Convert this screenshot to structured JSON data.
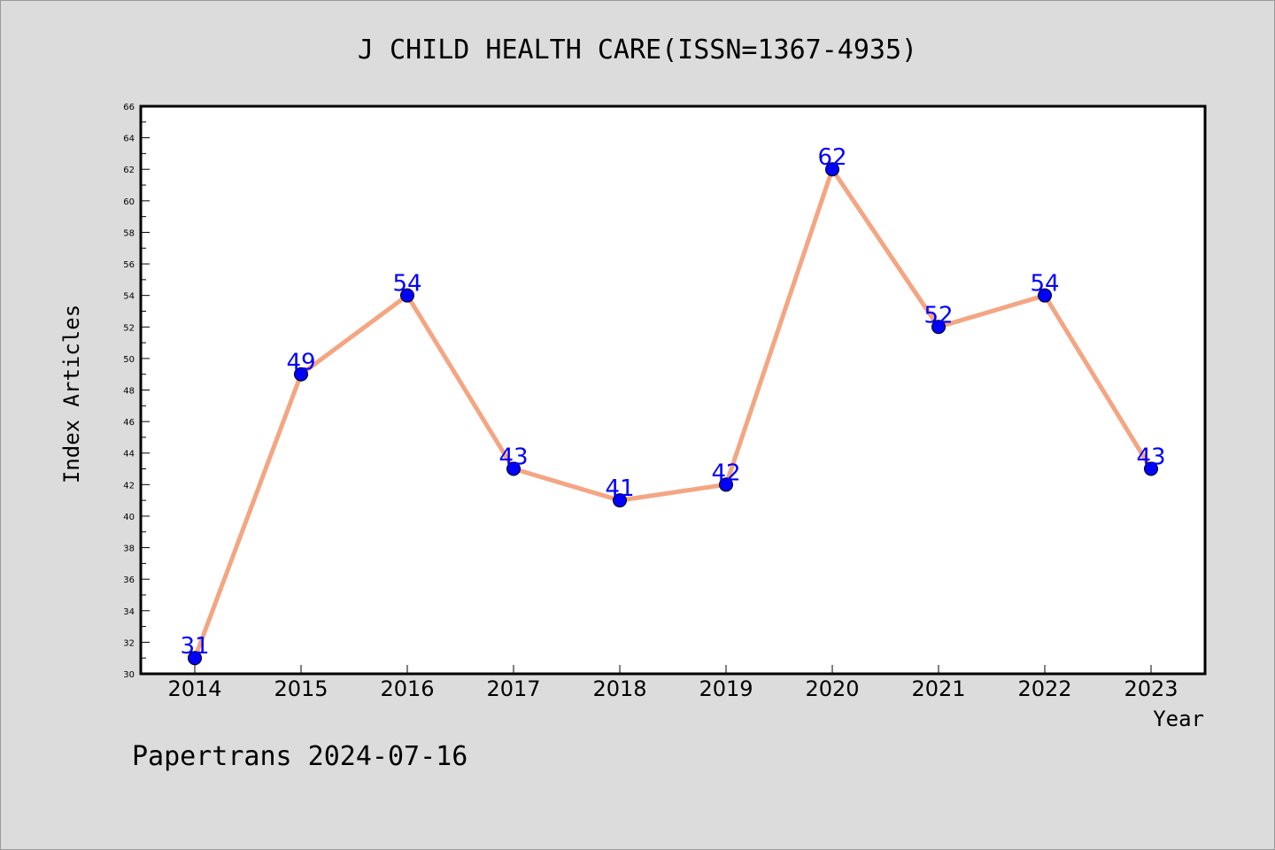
{
  "chart_data": {
    "type": "line",
    "title": "J CHILD HEALTH CARE(ISSN=1367-4935)",
    "xlabel": "Year",
    "ylabel": "Index Articles",
    "categories": [
      "2014",
      "2015",
      "2016",
      "2017",
      "2018",
      "2019",
      "2020",
      "2021",
      "2022",
      "2023"
    ],
    "values": [
      31,
      49,
      54,
      43,
      41,
      42,
      62,
      52,
      54,
      43
    ],
    "ylim": [
      30,
      66
    ],
    "ytick_step": 2,
    "grid": false,
    "colors": {
      "line": "#f4a582",
      "marker": "#0000ff",
      "data_label": "#0000ff",
      "plot_background": "#ffffff",
      "page_background": "#dcdcdc"
    }
  },
  "footer": {
    "text": "Papertrans 2024-07-16"
  }
}
